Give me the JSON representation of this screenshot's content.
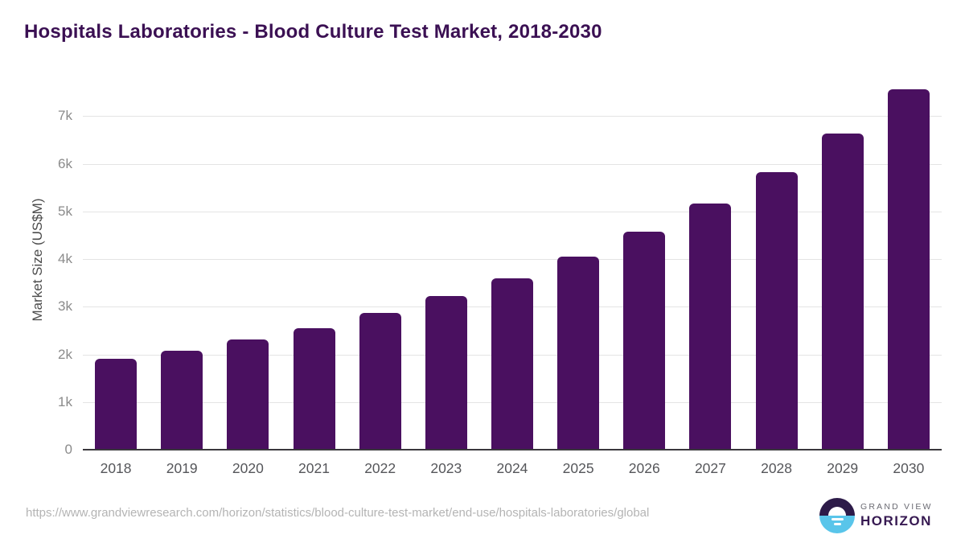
{
  "header": {
    "title": "Hospitals Laboratories - Blood Culture Test Market, 2018-2030"
  },
  "chart_data": {
    "type": "bar",
    "title": "Hospitals Laboratories - Blood Culture Test Market, 2018-2030",
    "categories": [
      "2018",
      "2019",
      "2020",
      "2021",
      "2022",
      "2023",
      "2024",
      "2025",
      "2026",
      "2027",
      "2028",
      "2029",
      "2030"
    ],
    "values": [
      1910,
      2070,
      2310,
      2550,
      2870,
      3220,
      3600,
      4050,
      4570,
      5170,
      5830,
      6640,
      7560
    ],
    "series_name": "Market Size",
    "unit": "US$M",
    "xlabel": "",
    "ylabel": "Market Size (US$M)",
    "ylim": [
      0,
      7800
    ],
    "yticks": [
      0,
      1000,
      2000,
      3000,
      4000,
      5000,
      6000,
      7000
    ],
    "ytick_labels": [
      "0",
      "1k",
      "2k",
      "3k",
      "4k",
      "5k",
      "6k",
      "7k"
    ],
    "grid": true,
    "legend": false,
    "bar_color": "#4A1060"
  },
  "footer": {
    "source_url": "https://www.grandviewresearch.com/horizon/statistics/blood-culture-test-market/end-use/hospitals-laboratories/global",
    "logo": {
      "brand_line1": "GRAND VIEW",
      "brand_line2": "HORIZON"
    }
  },
  "colors": {
    "title": "#3B1053",
    "bar": "#4A1060",
    "axis_line": "#3A373D",
    "gridline": "#E4E4E4",
    "x_tick_label": "#55565A",
    "y_tick_label": "#8B8B8B",
    "source_url": "#B4B4B4",
    "logo_circle_top": "#2D1B49",
    "logo_circle_bottom": "#59C5EA",
    "logo_text_top": "#6A6A72",
    "logo_text_bottom": "#371A52"
  }
}
